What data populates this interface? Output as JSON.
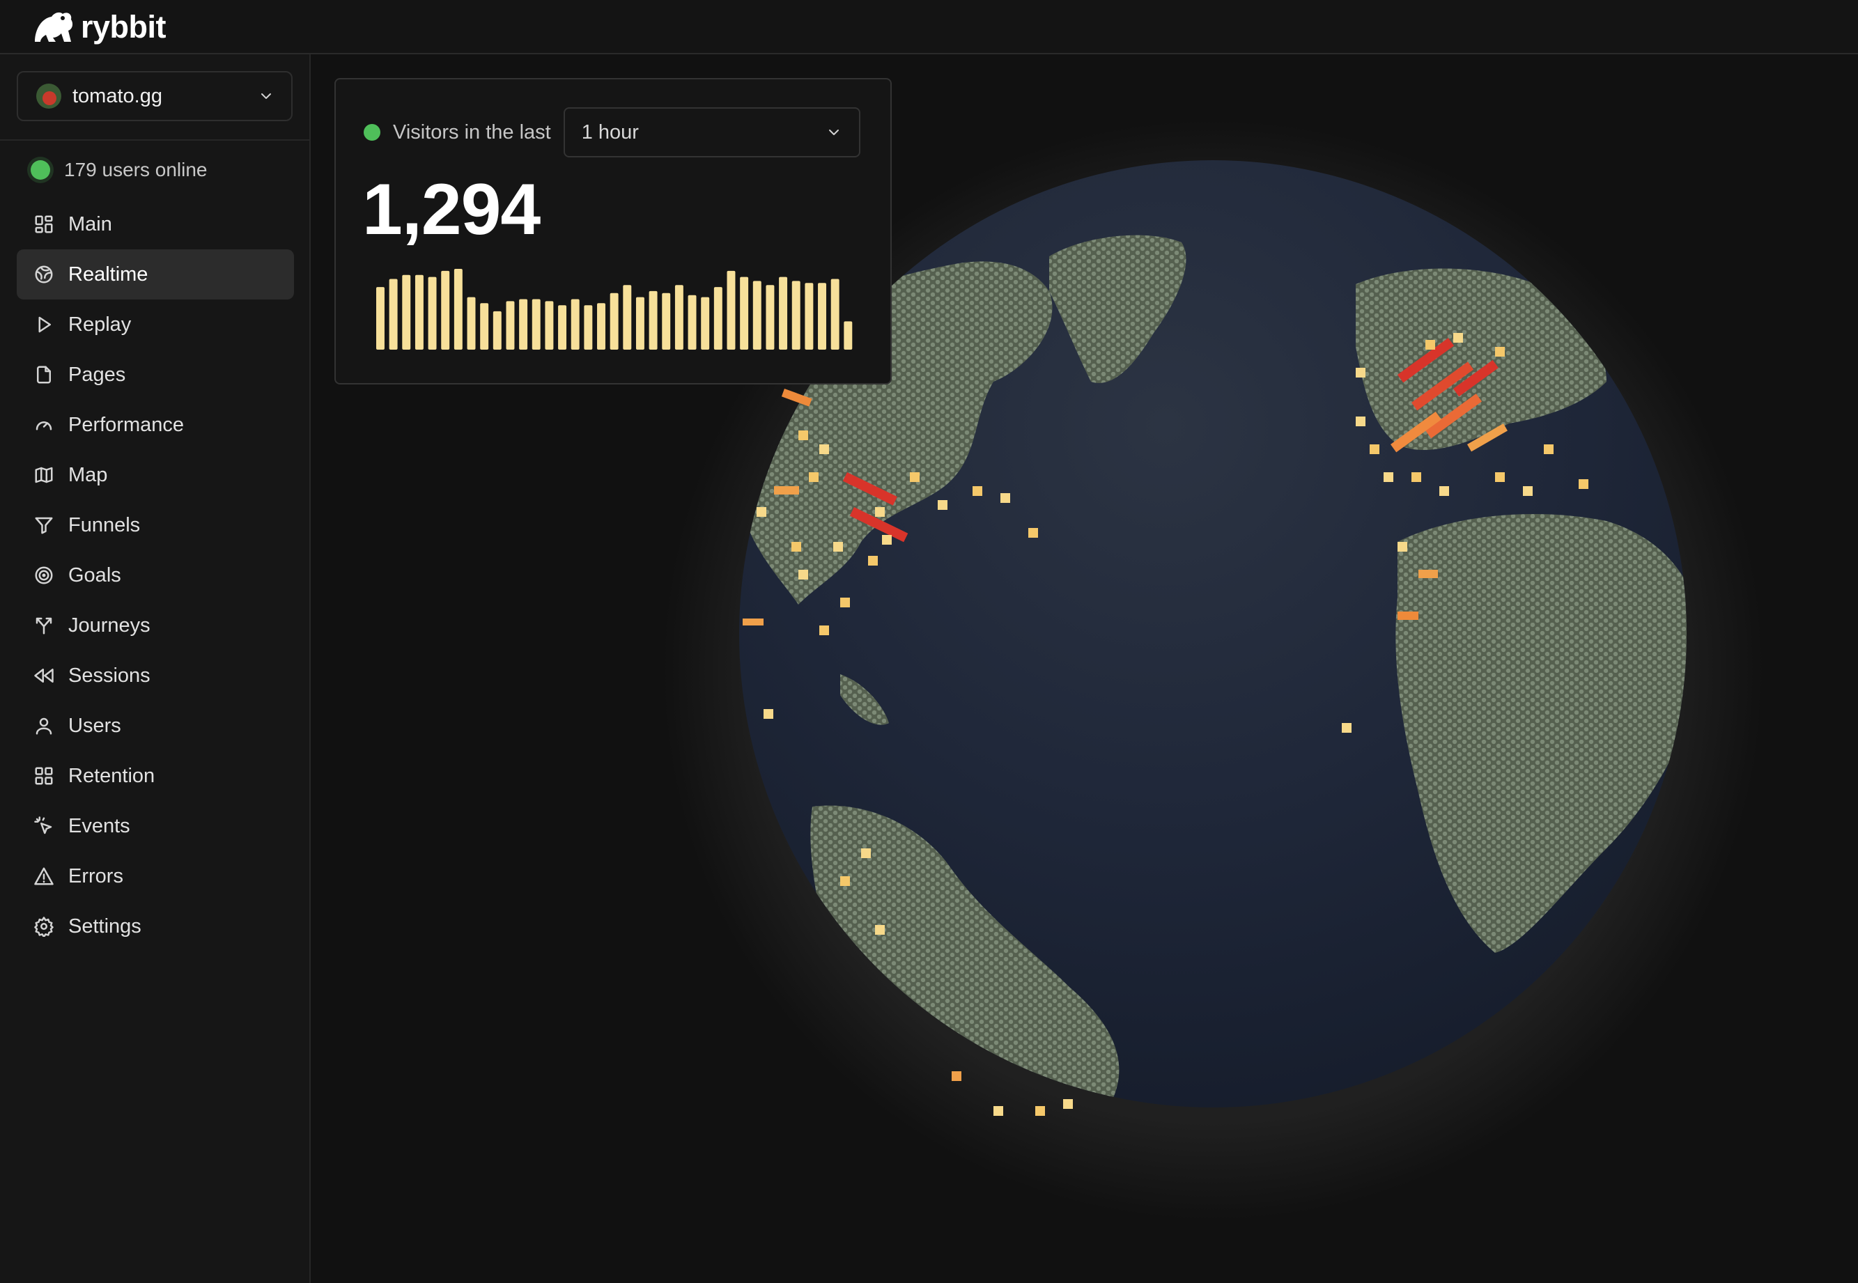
{
  "app": {
    "name": "rybbit"
  },
  "site_selector": {
    "value": "tomato.gg"
  },
  "online": {
    "text": "179 users online"
  },
  "nav": {
    "items": [
      {
        "label": "Main",
        "icon": "layout-grid-icon"
      },
      {
        "label": "Realtime",
        "icon": "globe-icon",
        "active": true
      },
      {
        "label": "Replay",
        "icon": "play-icon"
      },
      {
        "label": "Pages",
        "icon": "file-icon"
      },
      {
        "label": "Performance",
        "icon": "gauge-icon"
      },
      {
        "label": "Map",
        "icon": "map-icon"
      },
      {
        "label": "Funnels",
        "icon": "funnel-icon"
      },
      {
        "label": "Goals",
        "icon": "target-icon"
      },
      {
        "label": "Journeys",
        "icon": "split-icon"
      },
      {
        "label": "Sessions",
        "icon": "rewind-icon"
      },
      {
        "label": "Users",
        "icon": "user-icon"
      },
      {
        "label": "Retention",
        "icon": "grid-icon"
      },
      {
        "label": "Events",
        "icon": "mouse-pointer-click-icon"
      },
      {
        "label": "Errors",
        "icon": "alert-triangle-icon"
      },
      {
        "label": "Settings",
        "icon": "settings-icon"
      }
    ]
  },
  "realtime_card": {
    "label": "Visitors in the last",
    "range": "1 hour",
    "count": "1,294",
    "bars": [
      62,
      70,
      74,
      74,
      72,
      78,
      80,
      52,
      46,
      38,
      48,
      50,
      50,
      48,
      44,
      50,
      44,
      46,
      56,
      64,
      52,
      58,
      56,
      64,
      54,
      52,
      62,
      78,
      72,
      68,
      64,
      72,
      68,
      66,
      66,
      70,
      28
    ],
    "bar_color": "#f7e09a"
  },
  "colors": {
    "background": "#111111",
    "sidebar": "#161616",
    "accent_green": "#4fbf5a",
    "globe_ocean": "#1f283a",
    "globe_land": "#6f7c6c"
  }
}
